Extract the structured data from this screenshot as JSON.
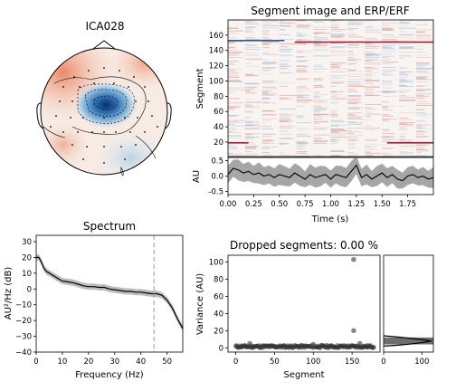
{
  "figure": {
    "topomap": {
      "title": "ICA028"
    },
    "segment_image": {
      "title": "Segment image and ERP/ERF",
      "ylabel": "Segment",
      "yticks": [
        "20",
        "40",
        "60",
        "80",
        "100",
        "120",
        "140",
        "160"
      ],
      "erp_ylabel": "AU",
      "erp_yticks": [
        "0.5",
        "0.0",
        "-0.5"
      ],
      "xlabel": "Time (s)",
      "xticks": [
        "0.00",
        "0.25",
        "0.50",
        "0.75",
        "1.00",
        "1.25",
        "1.50",
        "1.75"
      ]
    },
    "spectrum": {
      "title": "Spectrum",
      "xlabel": "Frequency (Hz)",
      "ylabel": "AU²/Hz (dB)",
      "xticks": [
        "0",
        "10",
        "20",
        "30",
        "40",
        "50"
      ],
      "yticks": [
        "30",
        "20",
        "10",
        "0",
        "−10",
        "−20",
        "−30",
        "−40"
      ]
    },
    "dropped": {
      "title": "Dropped segments: 0.00 %",
      "xlabel": "Segment",
      "ylabel": "Variance (AU)",
      "xticks": [
        "0",
        "50",
        "100",
        "150"
      ],
      "yticks": [
        "0",
        "20",
        "40",
        "60",
        "80",
        "100"
      ],
      "hist_xticks": [
        "0",
        "100"
      ]
    }
  },
  "chart_data": [
    {
      "type": "heatmap",
      "title": "Segment image and ERP/ERF",
      "ylabel": "Segment",
      "xlabel": "Time (s)",
      "xlim": [
        0,
        2.0
      ],
      "ylim": [
        1,
        180
      ],
      "notable_rows": [
        {
          "segment": 153,
          "sign": "negative",
          "t_range": [
            0.0,
            0.55
          ]
        },
        {
          "segment": 151,
          "sign": "positive",
          "t_range": [
            0.65,
            2.0
          ]
        },
        {
          "segment": 19,
          "sign": "positive",
          "t_range": [
            0.0,
            0.2
          ]
        },
        {
          "segment": 19,
          "sign": "positive",
          "t_range": [
            1.55,
            2.0
          ]
        }
      ]
    },
    {
      "type": "line",
      "ylabel": "AU",
      "xlabel": "Time (s)",
      "xlim": [
        0,
        2.0
      ],
      "ylim": [
        -0.6,
        0.6
      ],
      "x": [
        0.0,
        0.05,
        0.1,
        0.15,
        0.2,
        0.25,
        0.3,
        0.35,
        0.4,
        0.45,
        0.5,
        0.55,
        0.6,
        0.65,
        0.7,
        0.75,
        0.8,
        0.85,
        0.9,
        0.95,
        1.0,
        1.05,
        1.1,
        1.15,
        1.2,
        1.25,
        1.3,
        1.35,
        1.4,
        1.45,
        1.5,
        1.55,
        1.6,
        1.65,
        1.7,
        1.75,
        1.8,
        1.85,
        1.9,
        1.95,
        2.0
      ],
      "series": [
        {
          "values": [
            0.05,
            0.25,
            0.2,
            0.1,
            0.15,
            0.05,
            0.1,
            0.0,
            0.05,
            -0.05,
            0.05,
            0.0,
            -0.05,
            0.1,
            0.0,
            -0.1,
            0.05,
            -0.05,
            0.0,
            0.05,
            -0.1,
            0.05,
            0.0,
            -0.05,
            0.15,
            0.35,
            -0.05,
            0.05,
            -0.1,
            0.0,
            0.1,
            -0.05,
            0.05,
            -0.1,
            -0.15,
            0.0,
            0.05,
            -0.05,
            0.0,
            -0.1,
            -0.05
          ],
          "band": 0.3
        }
      ]
    },
    {
      "type": "line",
      "title": "Spectrum",
      "xlabel": "Frequency (Hz)",
      "ylabel": "AU²/Hz (dB)",
      "xlim": [
        0,
        56
      ],
      "ylim": [
        -40,
        34
      ],
      "x": [
        0,
        1,
        2,
        3,
        4,
        5,
        6,
        8,
        10,
        12,
        14,
        16,
        18,
        20,
        22,
        24,
        26,
        28,
        30,
        32,
        34,
        36,
        38,
        40,
        42,
        44,
        46,
        48,
        50,
        52,
        54,
        56
      ],
      "series": [
        {
          "values": [
            20,
            20,
            17,
            13,
            11,
            10,
            9,
            7,
            5,
            4.5,
            4,
            3,
            2,
            1.5,
            1.5,
            1,
            1,
            0,
            -0.5,
            -1,
            -1.5,
            -1.5,
            -2,
            -2,
            -2.5,
            -3,
            -3,
            -4,
            -7,
            -12,
            -19,
            -25
          ],
          "band": 2
        }
      ],
      "vline_x": 45
    },
    {
      "type": "scatter",
      "title": "Dropped segments: 0.00 %",
      "xlabel": "Segment",
      "ylabel": "Variance (AU)",
      "xlim": [
        -10,
        186
      ],
      "ylim": [
        -5,
        108
      ],
      "outliers": [
        {
          "x": 152,
          "y": 103
        },
        {
          "x": 152,
          "y": 20
        },
        {
          "x": 18,
          "y": 5
        },
        {
          "x": 100,
          "y": 4
        },
        {
          "x": 160,
          "y": 5
        }
      ],
      "baseline_range": [
        0,
        178
      ],
      "baseline_y": [
        0,
        3
      ]
    }
  ]
}
